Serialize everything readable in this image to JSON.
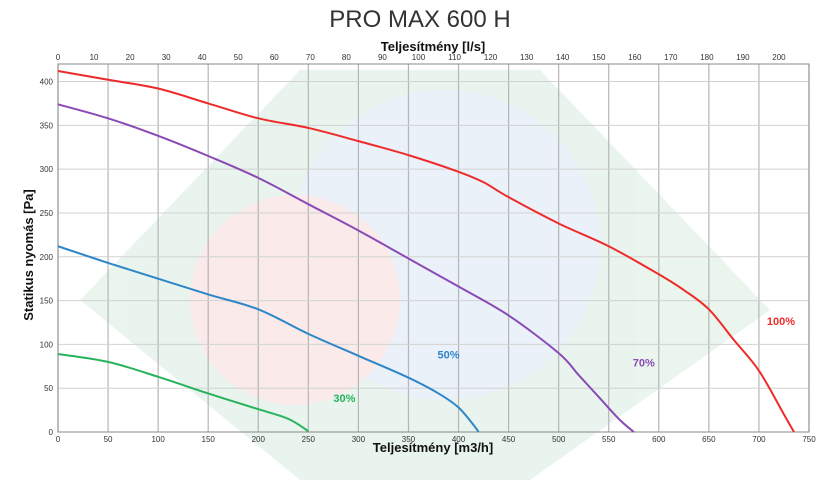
{
  "chart_data": {
    "type": "line",
    "title": "PRO MAX 600 H",
    "xlabel": "Teljesítmény [m3/h]",
    "x2label": "Teljesítmény [l/s]",
    "ylabel": "Statikus nyomás [Pa]",
    "xlim": [
      0,
      750
    ],
    "x2lim": [
      0,
      208.33
    ],
    "ylim": [
      0,
      420
    ],
    "xticks": [
      "0",
      "50",
      "100",
      "150",
      "200",
      "250",
      "300",
      "350",
      "400",
      "450",
      "500",
      "550",
      "600",
      "650",
      "700",
      "750"
    ],
    "x2ticks": [
      "0",
      "10",
      "20",
      "30",
      "40",
      "50",
      "60",
      "70",
      "80",
      "90",
      "100",
      "110",
      "120",
      "130",
      "140",
      "150",
      "160",
      "170",
      "180",
      "190",
      "200"
    ],
    "yticks": [
      "0",
      "50",
      "100",
      "150",
      "200",
      "250",
      "300",
      "350",
      "400"
    ],
    "grid": true,
    "watermark_colors": [
      "#2e9e5b",
      "#3a7fc1",
      "#d94040"
    ],
    "series": [
      {
        "name": "100%",
        "color": "#ee2b2b",
        "points": [
          [
            0,
            412
          ],
          [
            50,
            402
          ],
          [
            100,
            392
          ],
          [
            150,
            375
          ],
          [
            200,
            358
          ],
          [
            250,
            347
          ],
          [
            300,
            332
          ],
          [
            350,
            316
          ],
          [
            400,
            297
          ],
          [
            425,
            285
          ],
          [
            450,
            268
          ],
          [
            500,
            238
          ],
          [
            550,
            212
          ],
          [
            600,
            180
          ],
          [
            625,
            162
          ],
          [
            650,
            140
          ],
          [
            675,
            105
          ],
          [
            700,
            70
          ],
          [
            725,
            20
          ],
          [
            735,
            0
          ]
        ]
      },
      {
        "name": "70%",
        "color": "#8a4ab5",
        "points": [
          [
            0,
            374
          ],
          [
            50,
            358
          ],
          [
            100,
            338
          ],
          [
            150,
            315
          ],
          [
            200,
            290
          ],
          [
            250,
            260
          ],
          [
            300,
            230
          ],
          [
            350,
            198
          ],
          [
            400,
            166
          ],
          [
            450,
            133
          ],
          [
            500,
            90
          ],
          [
            520,
            65
          ],
          [
            540,
            40
          ],
          [
            560,
            15
          ],
          [
            575,
            0
          ]
        ]
      },
      {
        "name": "50%",
        "color": "#2e86c8",
        "points": [
          [
            0,
            212
          ],
          [
            50,
            193
          ],
          [
            100,
            175
          ],
          [
            150,
            157
          ],
          [
            200,
            140
          ],
          [
            250,
            112
          ],
          [
            300,
            87
          ],
          [
            350,
            62
          ],
          [
            380,
            44
          ],
          [
            400,
            28
          ],
          [
            415,
            8
          ],
          [
            420,
            0
          ]
        ]
      },
      {
        "name": "30%",
        "color": "#27b35c",
        "points": [
          [
            0,
            89
          ],
          [
            50,
            80
          ],
          [
            100,
            63
          ],
          [
            150,
            44
          ],
          [
            200,
            26
          ],
          [
            230,
            15
          ],
          [
            250,
            1
          ]
        ]
      }
    ]
  }
}
